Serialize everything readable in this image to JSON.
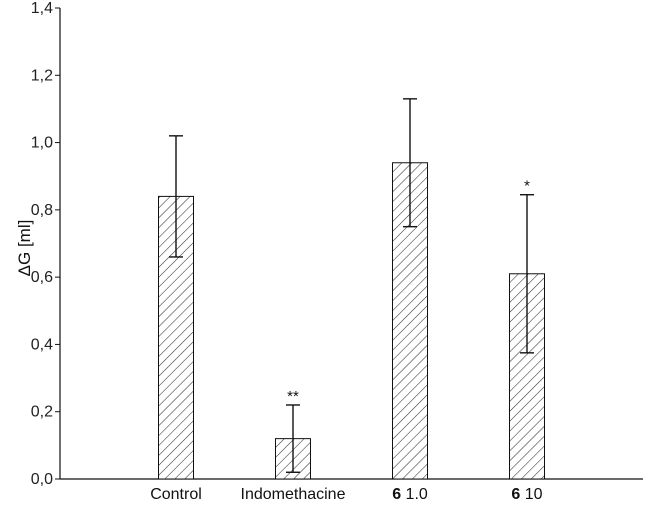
{
  "chart_data": {
    "type": "bar",
    "categories": [
      {
        "prefix": "",
        "label": "Control"
      },
      {
        "prefix": "",
        "label": "Indomethacine"
      },
      {
        "prefix": "6",
        "label": "1.0"
      },
      {
        "prefix": "6",
        "label": "10"
      }
    ],
    "values": [
      0.84,
      0.12,
      0.94,
      0.61
    ],
    "errors": [
      0.18,
      0.1,
      0.19,
      0.235
    ],
    "significance": [
      "",
      "**",
      "",
      "*"
    ],
    "ylabel": "ΔG [ml]",
    "ylim": [
      0,
      1.4
    ],
    "yticks": [
      "0,0",
      "0,2",
      "0,4",
      "0,6",
      "0,8",
      "1,0",
      "1,2",
      "1,4"
    ],
    "ytick_values": [
      0,
      0.2,
      0.4,
      0.6,
      0.8,
      1.0,
      1.2,
      1.4
    ],
    "bar_pattern": "diagonal-hatch",
    "grid": false,
    "legend": "none"
  }
}
